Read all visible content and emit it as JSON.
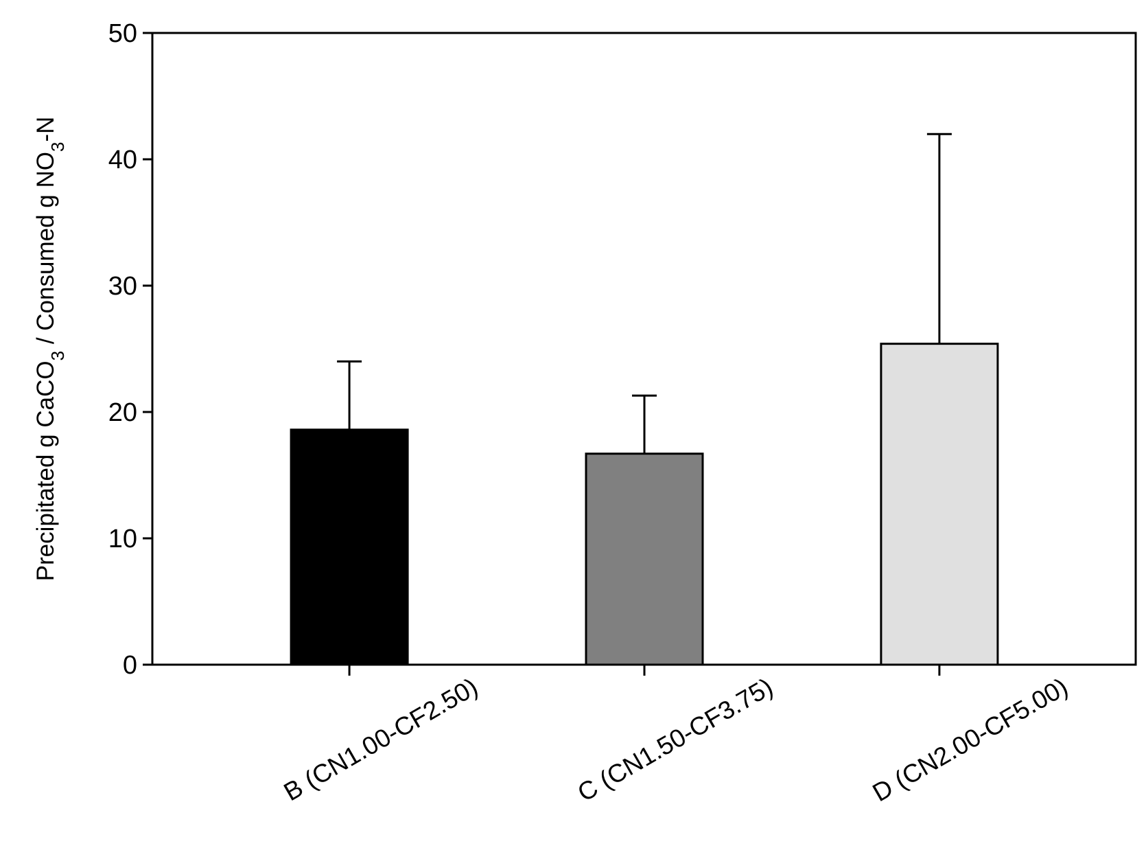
{
  "chart_data": {
    "type": "bar",
    "categories": [
      "B (CN1.00-CF2.50)",
      "C (CN1.50-CF3.75)",
      "D (CN2.00-CF5.00)"
    ],
    "values": [
      18.6,
      16.7,
      25.4
    ],
    "error_upper": [
      24.0,
      21.3,
      42.0
    ],
    "bar_colors": [
      "#000000",
      "#808080",
      "#e0e0e0"
    ],
    "ylim": [
      0,
      50
    ],
    "yticks": [
      "0",
      "10",
      "20",
      "30",
      "40",
      "50"
    ],
    "ylabel": {
      "part1": "Precipitated g CaCO",
      "sub1": "3",
      "part2": " / Consumed g NO",
      "sub2": "3",
      "part3": "-N"
    },
    "xlabel": "",
    "grid": false
  }
}
